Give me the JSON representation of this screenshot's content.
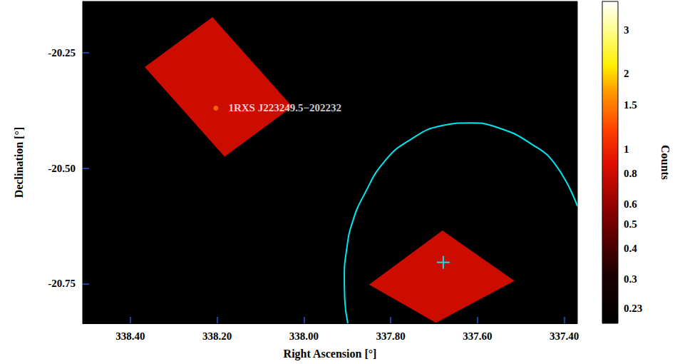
{
  "chart_data": {
    "type": "image",
    "xlabel": "Right Ascension [°]",
    "ylabel": "Declination [°]",
    "xlim": [
      338.51,
      337.37
    ],
    "xticks": [
      {
        "value": 338.4,
        "label": "338.40"
      },
      {
        "value": 338.2,
        "label": "338.20"
      },
      {
        "value": 338.0,
        "label": "338.00"
      },
      {
        "value": 337.8,
        "label": "337.80"
      },
      {
        "value": 337.6,
        "label": "337.60"
      },
      {
        "value": 337.4,
        "label": "337.40"
      }
    ],
    "ylim": [
      -20.836,
      -20.139
    ],
    "yticks": [
      {
        "value": -20.25,
        "label": "-20.25"
      },
      {
        "value": -20.5,
        "label": "-20.50"
      },
      {
        "value": -20.75,
        "label": "-20.75"
      }
    ],
    "fields": [
      {
        "corners": [
          [
            338.211,
            -20.173
          ],
          [
            338.027,
            -20.367
          ],
          [
            338.183,
            -20.475
          ],
          [
            338.367,
            -20.281
          ]
        ],
        "counts": 0.8
      },
      {
        "corners": [
          [
            337.681,
            -20.635
          ],
          [
            337.515,
            -20.744
          ],
          [
            337.696,
            -20.835
          ],
          [
            337.85,
            -20.752
          ]
        ],
        "counts": 0.8
      }
    ],
    "sources": [
      {
        "name": "1RXS J223249.5−202232",
        "x": 338.203,
        "y": -20.37,
        "counts": 1.5
      }
    ],
    "contour": {
      "color": "#00e5ee",
      "x": [
        337.899,
        337.906,
        337.907,
        337.902,
        337.888,
        337.86,
        337.814,
        337.756,
        337.682,
        337.617,
        337.551,
        337.477,
        337.42,
        337.37
      ],
      "y": [
        -20.836,
        -20.785,
        -20.739,
        -20.678,
        -20.616,
        -20.555,
        -20.485,
        -20.439,
        -20.408,
        -20.402,
        -20.413,
        -20.447,
        -20.493,
        -20.582
      ]
    },
    "target": {
      "x": 337.679,
      "y": -20.704,
      "marker": "cross",
      "color": "#00e5ee"
    },
    "colorbar": {
      "label": "Counts",
      "range": [
        0.2,
        3.9
      ],
      "ticks": [
        0.23,
        0.3,
        0.4,
        0.5,
        0.6,
        0.8,
        1,
        1.5,
        2,
        3
      ],
      "log": true
    }
  }
}
